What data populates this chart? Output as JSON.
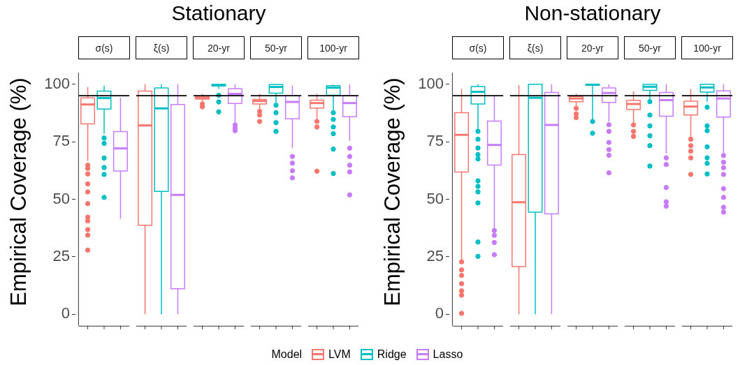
{
  "chart_data": [
    {
      "type": "box",
      "title": "Stationary",
      "ylabel": "Empirical Coverage (%)",
      "legend_title": "Model",
      "legend": "bottom",
      "categories": [
        "σ(s)",
        "ξ(s)",
        "20-yr",
        "50-yr",
        "100-yr"
      ],
      "ylim": [
        -5,
        105
      ],
      "yticks": [
        0,
        25,
        50,
        75,
        100
      ],
      "ref_lines": [
        {
          "axis": "y",
          "value": 95,
          "color": "#000000"
        }
      ],
      "series": [
        {
          "name": "LVM",
          "color": "#f8766d",
          "boxes": [
            {
              "low": 66.7,
              "q1": 82.8,
              "median": 91.2,
              "q3": 94.1,
              "high": 98.8,
              "outliers": [
                64.8,
                63.4,
                61,
                56.7,
                53.2,
                48.1,
                42.2,
                40.6,
                36.8,
                34.4,
                27.9
              ]
            },
            {
              "low": 0,
              "q1": 38.7,
              "median": 82.1,
              "q3": 97,
              "high": 100
            },
            {
              "low": 92.3,
              "q1": 93.5,
              "median": 94.2,
              "q3": 94.8,
              "high": 95.8,
              "outliers": [
                91.4,
                90.2
              ]
            },
            {
              "low": 89.2,
              "q1": 91.4,
              "median": 92.7,
              "q3": 93.4,
              "high": 95.8,
              "outliers": [
                88.2,
                86.6,
                83.8
              ]
            },
            {
              "low": 84.7,
              "q1": 89.6,
              "median": 91.8,
              "q3": 93.1,
              "high": 95.8,
              "outliers": [
                83.8,
                81.4,
                62.2
              ]
            }
          ]
        },
        {
          "name": "Ridge",
          "color": "#00bfc4",
          "boxes": [
            {
              "low": 78.5,
              "q1": 89.2,
              "median": 94,
              "q3": 97,
              "high": 99.4,
              "outliers": [
                76.6,
                74.3,
                67.9,
                63.8,
                60.8,
                50.8
              ]
            },
            {
              "low": 0,
              "q1": 53.4,
              "median": 89.5,
              "q3": 98.4,
              "high": 100
            },
            {
              "low": 98,
              "q1": 99.2,
              "median": 99.6,
              "q3": 100,
              "high": 100,
              "outliers": [
                95.2,
                92.3,
                88
              ]
            },
            {
              "low": 91.8,
              "q1": 96.1,
              "median": 98.8,
              "q3": 99.9,
              "high": 99.9,
              "outliers": [
                90.9,
                87.6,
                83.3,
                79.5
              ]
            },
            {
              "low": 88.5,
              "q1": 95.2,
              "median": 98.5,
              "q3": 99.4,
              "high": 99.9,
              "outliers": [
                87.6,
                84.7,
                81.4,
                78.5,
                71.8,
                61.2
              ]
            }
          ]
        },
        {
          "name": "Lasso",
          "color": "#c77cff",
          "boxes": [
            {
              "low": 41.5,
              "q1": 62.3,
              "median": 72.1,
              "q3": 79.4,
              "high": 94.2
            },
            {
              "low": 0,
              "q1": 11.1,
              "median": 51.9,
              "q3": 91.2,
              "high": 100
            },
            {
              "low": 82.8,
              "q1": 91.6,
              "median": 95.8,
              "q3": 98,
              "high": 100,
              "outliers": [
                82.3,
                80.9,
                79.8
              ]
            },
            {
              "low": 72.2,
              "q1": 85,
              "median": 92.3,
              "q3": 95,
              "high": 99.4,
              "outliers": [
                68.6,
                65.7,
                62.4,
                59.3
              ]
            },
            {
              "low": 75.4,
              "q1": 85.9,
              "median": 91.8,
              "q3": 95,
              "high": 99.9,
              "outliers": [
                72.2,
                68.6,
                64.8,
                61.9,
                51.9
              ]
            }
          ]
        }
      ]
    },
    {
      "type": "box",
      "title": "Non-stationary",
      "ylabel": "Empirical Coverage (%)",
      "categories": [
        "σ(s)",
        "ξ(s)",
        "20-yr",
        "50-yr",
        "100-yr"
      ],
      "ylim": [
        -5,
        105
      ],
      "yticks": [
        0,
        25,
        50,
        75,
        100
      ],
      "ref_lines": [
        {
          "axis": "y",
          "value": 95,
          "color": "#000000"
        }
      ],
      "series": [
        {
          "color": "#f8766d",
          "boxes": [
            {
              "low": 23.5,
              "q1": 61.8,
              "median": 78,
              "q3": 87.6,
              "high": 97.9,
              "outliers": [
                22.8,
                19.3,
                16.9,
                13.3,
                10.2,
                8.3,
                0.4
              ]
            },
            {
              "low": 0,
              "q1": 20.7,
              "median": 48.7,
              "q3": 69.4,
              "high": 99.5
            },
            {
              "low": 90.4,
              "q1": 92.4,
              "median": 93.8,
              "q3": 94.7,
              "high": 95.9,
              "outliers": [
                89.5,
                87.1,
                85.5
              ]
            },
            {
              "low": 83.3,
              "q1": 89,
              "median": 91.4,
              "q3": 93,
              "high": 96.9,
              "outliers": [
                82.3,
                79.5,
                77.3
              ]
            },
            {
              "low": 77.1,
              "q1": 86.6,
              "median": 90.3,
              "q3": 92.6,
              "high": 97.9,
              "outliers": [
                76.1,
                73.3,
                70.9,
                68,
                60.8
              ]
            }
          ]
        },
        {
          "color": "#00bfc4",
          "boxes": [
            {
              "low": 80.4,
              "q1": 91.4,
              "median": 96.7,
              "q3": 99,
              "high": 100,
              "outliers": [
                79.5,
                76.1,
                72.3,
                69.4,
                67.5,
                58,
                55.6,
                53.2,
                48.4,
                31.4,
                25.2
              ]
            },
            {
              "low": 0,
              "q1": 44.4,
              "median": 94.1,
              "q3": 100,
              "high": 100
            },
            {
              "low": 84.7,
              "q1": 99.5,
              "median": 99.8,
              "q3": 100,
              "high": 100,
              "outliers": [
                83.8,
                78.7
              ]
            },
            {
              "low": 93.5,
              "q1": 97.3,
              "median": 98.9,
              "q3": 100,
              "high": 100,
              "outliers": [
                92.4,
                86.6,
                81.9,
                77.6,
                73.3,
                64.4
              ]
            },
            {
              "low": 92.4,
              "q1": 96.6,
              "median": 98.6,
              "q3": 100,
              "high": 100,
              "outliers": [
                90,
                81.9,
                79.8,
                72.8,
                68,
                65.6,
                61
              ]
            }
          ]
        },
        {
          "color": "#c77cff",
          "boxes": [
            {
              "low": 37,
              "q1": 64.9,
              "median": 73.6,
              "q3": 84,
              "high": 94.9,
              "outliers": [
                36.4,
                34.3,
                31.2,
                25.9
              ]
            },
            {
              "low": 0,
              "q1": 43.6,
              "median": 82.3,
              "q3": 96.4,
              "high": 100
            },
            {
              "low": 83.8,
              "q1": 92.1,
              "median": 96.2,
              "q3": 98.4,
              "high": 100,
              "outliers": [
                82.4,
                79.5,
                74.7,
                71.6,
                69.1,
                61.5
              ]
            },
            {
              "low": 69.9,
              "q1": 86.1,
              "median": 93.1,
              "q3": 96.4,
              "high": 100,
              "outliers": [
                68,
                65.1,
                55.1,
                48.9,
                47
              ]
            },
            {
              "low": 69.4,
              "q1": 85.7,
              "median": 93.8,
              "q3": 97.1,
              "high": 100,
              "outliers": [
                69,
                66.1,
                63.7,
                60.8,
                54.6,
                50.8,
                46.5,
                44.4
              ]
            }
          ]
        }
      ]
    }
  ]
}
